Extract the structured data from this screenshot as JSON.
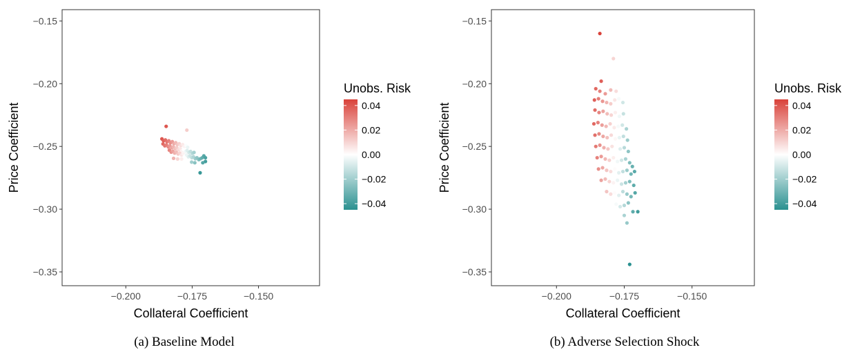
{
  "chart_data": [
    {
      "type": "scatter",
      "caption": "(a) Baseline Model",
      "xlabel": "Collateral Coefficient",
      "ylabel": "Price Coefficient",
      "xlim": [
        -0.224,
        -0.127
      ],
      "ylim": [
        -0.361,
        -0.141
      ],
      "xticks": [
        -0.2,
        -0.175,
        -0.15
      ],
      "xtick_labels": [
        "−0.200",
        "−0.175",
        "−0.150"
      ],
      "yticks": [
        -0.15,
        -0.2,
        -0.25,
        -0.3,
        -0.35
      ],
      "ytick_labels": [
        "−0.15",
        "−0.20",
        "−0.25",
        "−0.30",
        "−0.35"
      ],
      "grid": false,
      "legend": {
        "title": "Unobs. Risk",
        "placement": "right",
        "range": [
          -0.045,
          0.045
        ],
        "ticks": [
          0.04,
          0.02,
          0.0,
          -0.02,
          -0.04
        ],
        "tick_labels": [
          "0.04",
          "0.02",
          "0.00",
          "−0.02",
          "−0.04"
        ],
        "colors": {
          "high": "#d9423a",
          "mid": "#ffffff",
          "low": "#2a9190"
        }
      },
      "points": [
        [
          -0.1848,
          -0.234,
          0.04
        ],
        [
          -0.177,
          -0.237,
          0.012
        ],
        [
          -0.1864,
          -0.244,
          0.04
        ],
        [
          -0.1858,
          -0.2455,
          0.038
        ],
        [
          -0.1851,
          -0.2448,
          0.035
        ],
        [
          -0.1845,
          -0.2462,
          0.033
        ],
        [
          -0.1838,
          -0.2455,
          0.03
        ],
        [
          -0.1832,
          -0.247,
          0.027
        ],
        [
          -0.1825,
          -0.2462,
          0.024
        ],
        [
          -0.1819,
          -0.2478,
          0.02
        ],
        [
          -0.1812,
          -0.247,
          0.017
        ],
        [
          -0.1806,
          -0.2485,
          0.014
        ],
        [
          -0.1799,
          -0.2478,
          0.011
        ],
        [
          -0.1793,
          -0.2492,
          0.008
        ],
        [
          -0.1786,
          -0.2485,
          0.005
        ],
        [
          -0.178,
          -0.25,
          0.003
        ],
        [
          -0.1773,
          -0.2492,
          -0.001
        ],
        [
          -0.1767,
          -0.2507,
          -0.004
        ],
        [
          -0.186,
          -0.248,
          0.036
        ],
        [
          -0.1853,
          -0.2495,
          0.033
        ],
        [
          -0.1847,
          -0.2488,
          0.031
        ],
        [
          -0.184,
          -0.2503,
          0.028
        ],
        [
          -0.1834,
          -0.2495,
          0.025
        ],
        [
          -0.1827,
          -0.251,
          0.022
        ],
        [
          -0.1821,
          -0.2503,
          0.018
        ],
        [
          -0.1814,
          -0.2518,
          0.015
        ],
        [
          -0.1808,
          -0.251,
          0.012
        ],
        [
          -0.1801,
          -0.2525,
          0.009
        ],
        [
          -0.1795,
          -0.2518,
          0.006
        ],
        [
          -0.1788,
          -0.2533,
          0.003
        ],
        [
          -0.1782,
          -0.2525,
          0.0
        ],
        [
          -0.1775,
          -0.254,
          -0.003
        ],
        [
          -0.1769,
          -0.2533,
          -0.007
        ],
        [
          -0.1762,
          -0.2548,
          -0.01
        ],
        [
          -0.1756,
          -0.254,
          -0.013
        ],
        [
          -0.1749,
          -0.2555,
          -0.016
        ],
        [
          -0.1743,
          -0.2548,
          -0.019
        ],
        [
          -0.1836,
          -0.253,
          0.029
        ],
        [
          -0.1829,
          -0.2545,
          0.026
        ],
        [
          -0.1823,
          -0.2538,
          0.022
        ],
        [
          -0.1816,
          -0.2553,
          0.019
        ],
        [
          -0.181,
          -0.2545,
          0.016
        ],
        [
          -0.1803,
          -0.256,
          0.013
        ],
        [
          -0.1797,
          -0.2553,
          0.01
        ],
        [
          -0.179,
          -0.2568,
          0.006
        ],
        [
          -0.1784,
          -0.256,
          0.003
        ],
        [
          -0.1777,
          -0.2575,
          0.0
        ],
        [
          -0.1771,
          -0.2568,
          -0.004
        ],
        [
          -0.1764,
          -0.2583,
          -0.007
        ],
        [
          -0.1758,
          -0.2575,
          -0.011
        ],
        [
          -0.1751,
          -0.259,
          -0.014
        ],
        [
          -0.1745,
          -0.2583,
          -0.017
        ],
        [
          -0.1738,
          -0.2598,
          -0.021
        ],
        [
          -0.1732,
          -0.259,
          -0.024
        ],
        [
          -0.1725,
          -0.2605,
          -0.027
        ],
        [
          -0.1719,
          -0.2598,
          -0.03
        ],
        [
          -0.1712,
          -0.259,
          -0.033
        ],
        [
          -0.1706,
          -0.2575,
          -0.036
        ],
        [
          -0.17,
          -0.259,
          -0.038
        ],
        [
          -0.17,
          -0.262,
          -0.04
        ],
        [
          -0.171,
          -0.263,
          -0.036
        ],
        [
          -0.174,
          -0.263,
          -0.025
        ],
        [
          -0.1752,
          -0.2625,
          -0.02
        ],
        [
          -0.179,
          -0.26,
          0.004
        ],
        [
          -0.1805,
          -0.26,
          0.01
        ],
        [
          -0.182,
          -0.2595,
          0.018
        ],
        [
          -0.172,
          -0.271,
          -0.042
        ]
      ]
    },
    {
      "type": "scatter",
      "caption": "(b) Adverse Selection Shock",
      "xlabel": "Collateral Coefficient",
      "ylabel": "Price Coefficient",
      "xlim": [
        -0.224,
        -0.127
      ],
      "ylim": [
        -0.361,
        -0.141
      ],
      "xticks": [
        -0.2,
        -0.175,
        -0.15
      ],
      "xtick_labels": [
        "−0.200",
        "−0.175",
        "−0.150"
      ],
      "yticks": [
        -0.15,
        -0.2,
        -0.25,
        -0.3,
        -0.35
      ],
      "ytick_labels": [
        "−0.15",
        "−0.20",
        "−0.25",
        "−0.30",
        "−0.35"
      ],
      "grid": false,
      "legend": {
        "title": "Unobs. Risk",
        "placement": "right",
        "range": [
          -0.045,
          0.045
        ],
        "ticks": [
          0.04,
          0.02,
          0.0,
          -0.02,
          -0.04
        ],
        "tick_labels": [
          "0.04",
          "0.02",
          "0.00",
          "−0.02",
          "−0.04"
        ],
        "colors": {
          "high": "#d9423a",
          "mid": "#ffffff",
          "low": "#2a9190"
        }
      },
      "points": [
        [
          -0.184,
          -0.16,
          0.045
        ],
        [
          -0.179,
          -0.18,
          0.01
        ],
        [
          -0.1835,
          -0.198,
          0.038
        ],
        [
          -0.1855,
          -0.204,
          0.036
        ],
        [
          -0.184,
          -0.206,
          0.03
        ],
        [
          -0.182,
          -0.208,
          0.024
        ],
        [
          -0.18,
          -0.205,
          0.016
        ],
        [
          -0.178,
          -0.206,
          0.008
        ],
        [
          -0.186,
          -0.213,
          0.038
        ],
        [
          -0.1845,
          -0.212,
          0.031
        ],
        [
          -0.183,
          -0.214,
          0.025
        ],
        [
          -0.1815,
          -0.215,
          0.018
        ],
        [
          -0.18,
          -0.216,
          0.012
        ],
        [
          -0.1785,
          -0.213,
          0.006
        ],
        [
          -0.177,
          -0.212,
          -0.002
        ],
        [
          -0.1755,
          -0.215,
          -0.01
        ],
        [
          -0.1858,
          -0.221,
          0.035
        ],
        [
          -0.1843,
          -0.223,
          0.029
        ],
        [
          -0.1828,
          -0.222,
          0.022
        ],
        [
          -0.1813,
          -0.224,
          0.016
        ],
        [
          -0.1798,
          -0.225,
          0.01
        ],
        [
          -0.1783,
          -0.223,
          0.004
        ],
        [
          -0.1768,
          -0.226,
          -0.003
        ],
        [
          -0.1753,
          -0.224,
          -0.012
        ],
        [
          -0.1862,
          -0.232,
          0.036
        ],
        [
          -0.1847,
          -0.231,
          0.03
        ],
        [
          -0.1832,
          -0.233,
          0.023
        ],
        [
          -0.1817,
          -0.234,
          0.017
        ],
        [
          -0.1802,
          -0.232,
          0.011
        ],
        [
          -0.1787,
          -0.235,
          0.005
        ],
        [
          -0.1772,
          -0.234,
          -0.002
        ],
        [
          -0.1757,
          -0.233,
          -0.01
        ],
        [
          -0.1742,
          -0.236,
          -0.018
        ],
        [
          -0.1858,
          -0.241,
          0.034
        ],
        [
          -0.1843,
          -0.24,
          0.028
        ],
        [
          -0.1828,
          -0.242,
          0.021
        ],
        [
          -0.1813,
          -0.243,
          0.015
        ],
        [
          -0.1798,
          -0.241,
          0.009
        ],
        [
          -0.1783,
          -0.244,
          0.002
        ],
        [
          -0.1768,
          -0.243,
          -0.005
        ],
        [
          -0.1753,
          -0.242,
          -0.013
        ],
        [
          -0.1738,
          -0.245,
          -0.021
        ],
        [
          -0.1855,
          -0.25,
          0.032
        ],
        [
          -0.184,
          -0.249,
          0.026
        ],
        [
          -0.1825,
          -0.251,
          0.019
        ],
        [
          -0.181,
          -0.252,
          0.013
        ],
        [
          -0.1795,
          -0.25,
          0.007
        ],
        [
          -0.178,
          -0.253,
          0.0
        ],
        [
          -0.1765,
          -0.252,
          -0.007
        ],
        [
          -0.175,
          -0.251,
          -0.015
        ],
        [
          -0.1735,
          -0.254,
          -0.024
        ],
        [
          -0.185,
          -0.259,
          0.03
        ],
        [
          -0.1835,
          -0.258,
          0.024
        ],
        [
          -0.182,
          -0.26,
          0.017
        ],
        [
          -0.1805,
          -0.261,
          0.011
        ],
        [
          -0.179,
          -0.259,
          0.004
        ],
        [
          -0.1775,
          -0.262,
          -0.003
        ],
        [
          -0.176,
          -0.261,
          -0.01
        ],
        [
          -0.1745,
          -0.26,
          -0.018
        ],
        [
          -0.173,
          -0.263,
          -0.027
        ],
        [
          -0.172,
          -0.266,
          -0.032
        ],
        [
          -0.1845,
          -0.268,
          0.027
        ],
        [
          -0.183,
          -0.267,
          0.021
        ],
        [
          -0.1815,
          -0.269,
          0.014
        ],
        [
          -0.18,
          -0.27,
          0.008
        ],
        [
          -0.1785,
          -0.268,
          0.001
        ],
        [
          -0.177,
          -0.271,
          -0.006
        ],
        [
          -0.1755,
          -0.27,
          -0.013
        ],
        [
          -0.174,
          -0.269,
          -0.021
        ],
        [
          -0.1725,
          -0.272,
          -0.03
        ],
        [
          -0.1712,
          -0.27,
          -0.035
        ],
        [
          -0.1835,
          -0.277,
          0.022
        ],
        [
          -0.182,
          -0.276,
          0.016
        ],
        [
          -0.1805,
          -0.278,
          0.01
        ],
        [
          -0.179,
          -0.279,
          0.003
        ],
        [
          -0.1775,
          -0.277,
          -0.004
        ],
        [
          -0.176,
          -0.28,
          -0.011
        ],
        [
          -0.1745,
          -0.279,
          -0.019
        ],
        [
          -0.173,
          -0.278,
          -0.027
        ],
        [
          -0.1715,
          -0.281,
          -0.034
        ],
        [
          -0.1815,
          -0.286,
          0.014
        ],
        [
          -0.18,
          -0.288,
          0.008
        ],
        [
          -0.1785,
          -0.287,
          0.001
        ],
        [
          -0.177,
          -0.289,
          -0.006
        ],
        [
          -0.1755,
          -0.286,
          -0.014
        ],
        [
          -0.174,
          -0.288,
          -0.022
        ],
        [
          -0.1725,
          -0.29,
          -0.029
        ],
        [
          -0.171,
          -0.287,
          -0.036
        ],
        [
          -0.178,
          -0.296,
          -0.002
        ],
        [
          -0.1765,
          -0.298,
          -0.009
        ],
        [
          -0.175,
          -0.297,
          -0.016
        ],
        [
          -0.1735,
          -0.295,
          -0.024
        ],
        [
          -0.175,
          -0.305,
          -0.018
        ],
        [
          -0.174,
          -0.311,
          -0.022
        ],
        [
          -0.1718,
          -0.302,
          -0.034
        ],
        [
          -0.17,
          -0.302,
          -0.04
        ],
        [
          -0.173,
          -0.344,
          -0.045
        ]
      ]
    }
  ]
}
